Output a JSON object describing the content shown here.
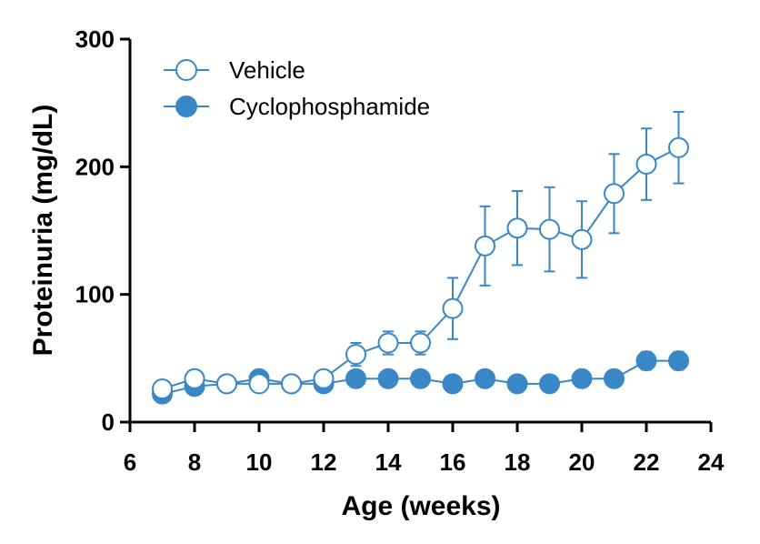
{
  "chart_data": {
    "type": "line",
    "xlabel": "Age (weeks)",
    "ylabel": "Proteinuria (mg/dL)",
    "xlim": [
      6,
      24
    ],
    "ylim": [
      0,
      300
    ],
    "xticks": [
      "6",
      "8",
      "10",
      "12",
      "14",
      "16",
      "18",
      "20",
      "22",
      "24"
    ],
    "yticks": [
      "0",
      "100",
      "200",
      "300"
    ],
    "grid": false,
    "legend_position": "top-left",
    "color": "#3a87c8",
    "series": [
      {
        "name": "Vehicle",
        "marker": "open-circle",
        "x": [
          7,
          8,
          9,
          10,
          11,
          12,
          13,
          14,
          15,
          16,
          17,
          18,
          19,
          20,
          21,
          22,
          23
        ],
        "y": [
          26,
          34,
          30,
          30,
          30,
          34,
          53,
          62,
          62,
          89,
          138,
          152,
          151,
          143,
          179,
          202,
          215
        ],
        "error": [
          3,
          3,
          3,
          3,
          3,
          3,
          9,
          9,
          9,
          24,
          31,
          29,
          33,
          30,
          31,
          28,
          28
        ]
      },
      {
        "name": "Cyclophosphamide",
        "marker": "filled-circle",
        "x": [
          7,
          8,
          9,
          10,
          11,
          12,
          13,
          14,
          15,
          16,
          17,
          18,
          19,
          20,
          21,
          22,
          23
        ],
        "y": [
          22,
          28,
          30,
          34,
          30,
          30,
          34,
          34,
          34,
          30,
          34,
          30,
          30,
          34,
          34,
          48,
          48
        ],
        "error": [
          2,
          2,
          2,
          3,
          2,
          2,
          3,
          3,
          3,
          3,
          3,
          3,
          3,
          3,
          3,
          7,
          7
        ]
      }
    ]
  }
}
